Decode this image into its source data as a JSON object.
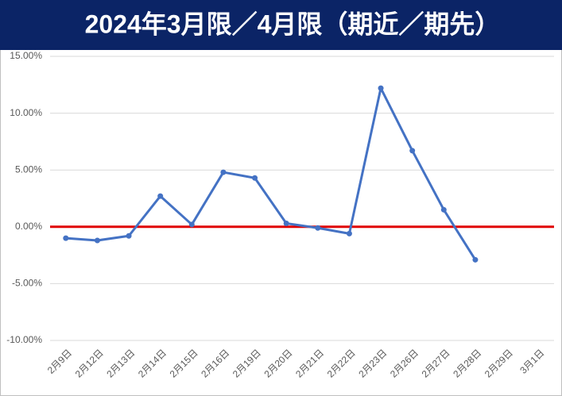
{
  "chart_data": {
    "type": "line",
    "title": "2024年3月限／4月限（期近／期先）",
    "title_background": "#0b2466",
    "categories": [
      "2月9日",
      "2月12日",
      "2月13日",
      "2月14日",
      "2月15日",
      "2月16日",
      "2月19日",
      "2月20日",
      "2月21日",
      "2月22日",
      "2月23日",
      "2月26日",
      "2月27日",
      "2月28日",
      "2月29日",
      "3月1日"
    ],
    "series": [
      {
        "color": "#4472c4",
        "values": [
          -1.0,
          -1.2,
          -0.8,
          2.7,
          0.2,
          4.8,
          4.3,
          0.3,
          -0.1,
          -0.6,
          12.2,
          6.7,
          1.5,
          -2.9,
          null,
          null
        ]
      }
    ],
    "ylim": [
      -10,
      15
    ],
    "yticks": [
      {
        "value": -10,
        "label": "-10.00%"
      },
      {
        "value": -5,
        "label": "-5.00%"
      },
      {
        "value": 0,
        "label": "0.00%"
      },
      {
        "value": 5,
        "label": "5.00%"
      },
      {
        "value": 10,
        "label": "10.00%"
      },
      {
        "value": 15,
        "label": "15.00%"
      }
    ],
    "grid": true,
    "reference_line": 0,
    "reference_color": "#e00000"
  }
}
